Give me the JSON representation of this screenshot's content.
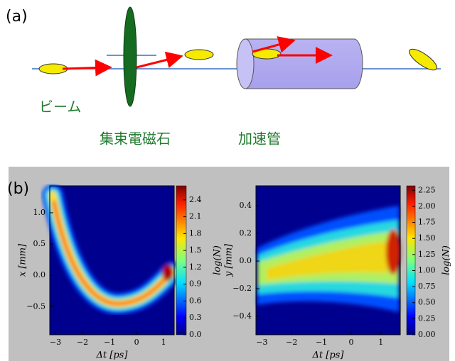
{
  "panel_a": {
    "label": "(a)",
    "beam": "ビーム",
    "lens": "集束電磁石",
    "accelerator": "加速管"
  },
  "panel_b": {
    "label": "(b)"
  },
  "chart_data": [
    {
      "type": "heatmap",
      "xlabel": "Δt [ps]",
      "ylabel": "x [mm]",
      "colorbar_label": "log(N)",
      "xlim": [
        -3.21,
        1.39
      ],
      "ylim": [
        -0.95,
        1.43
      ],
      "xticks": [
        {
          "value": -3,
          "label": "−3"
        },
        {
          "value": -2,
          "label": "−2"
        },
        {
          "value": -1,
          "label": "−1"
        },
        0,
        1
      ],
      "yticks": [
        {
          "value": 1.0,
          "label": "1.0"
        },
        {
          "value": 0.5,
          "label": "0.5"
        },
        {
          "value": 0.0,
          "label": "0.0"
        },
        {
          "value": -0.5,
          "label": "−0.5"
        }
      ],
      "clim": [
        0,
        2.65
      ],
      "cticks": [
        {
          "value": 0.0,
          "label": "0.0"
        },
        {
          "value": 0.3,
          "label": "0.3"
        },
        {
          "value": 0.6,
          "label": "0.6"
        },
        {
          "value": 0.9,
          "label": "0.9"
        },
        {
          "value": 1.2,
          "label": "1.2"
        },
        {
          "value": 1.5,
          "label": "1.5"
        },
        {
          "value": 1.8,
          "label": "1.8"
        },
        {
          "value": 2.1,
          "label": "2.1"
        },
        {
          "value": 2.4,
          "label": "2.4"
        }
      ]
    },
    {
      "type": "heatmap",
      "xlabel": "Δt [ps]",
      "ylabel": "y [mm]",
      "colorbar_label": "log(N)",
      "xlim": [
        -3.2,
        1.65
      ],
      "ylim": [
        -0.533,
        0.544
      ],
      "xticks": [
        {
          "value": -3,
          "label": "−3"
        },
        {
          "value": -2,
          "label": "−2"
        },
        {
          "value": -1,
          "label": "−1"
        },
        0,
        1
      ],
      "yticks": [
        {
          "value": 0.4,
          "label": "0.4"
        },
        {
          "value": 0.2,
          "label": "0.2"
        },
        {
          "value": 0.0,
          "label": "0.0"
        },
        {
          "value": -0.2,
          "label": "−0.2"
        },
        {
          "value": -0.4,
          "label": "−0.4"
        }
      ],
      "clim": [
        0,
        2.32
      ],
      "cticks": [
        {
          "value": 0,
          "label": "0.00"
        },
        {
          "value": 0.25,
          "label": "0.25"
        },
        {
          "value": 0.5,
          "label": "0.50"
        },
        {
          "value": 0.75,
          "label": "0.75"
        },
        {
          "value": 1.0,
          "label": "1.00"
        },
        {
          "value": 1.25,
          "label": "1.25"
        },
        {
          "value": 1.5,
          "label": "1.50"
        },
        {
          "value": 1.75,
          "label": "1.75"
        },
        {
          "value": 2.0,
          "label": "2.00"
        },
        {
          "value": 2.25,
          "label": "2.25"
        }
      ]
    }
  ]
}
